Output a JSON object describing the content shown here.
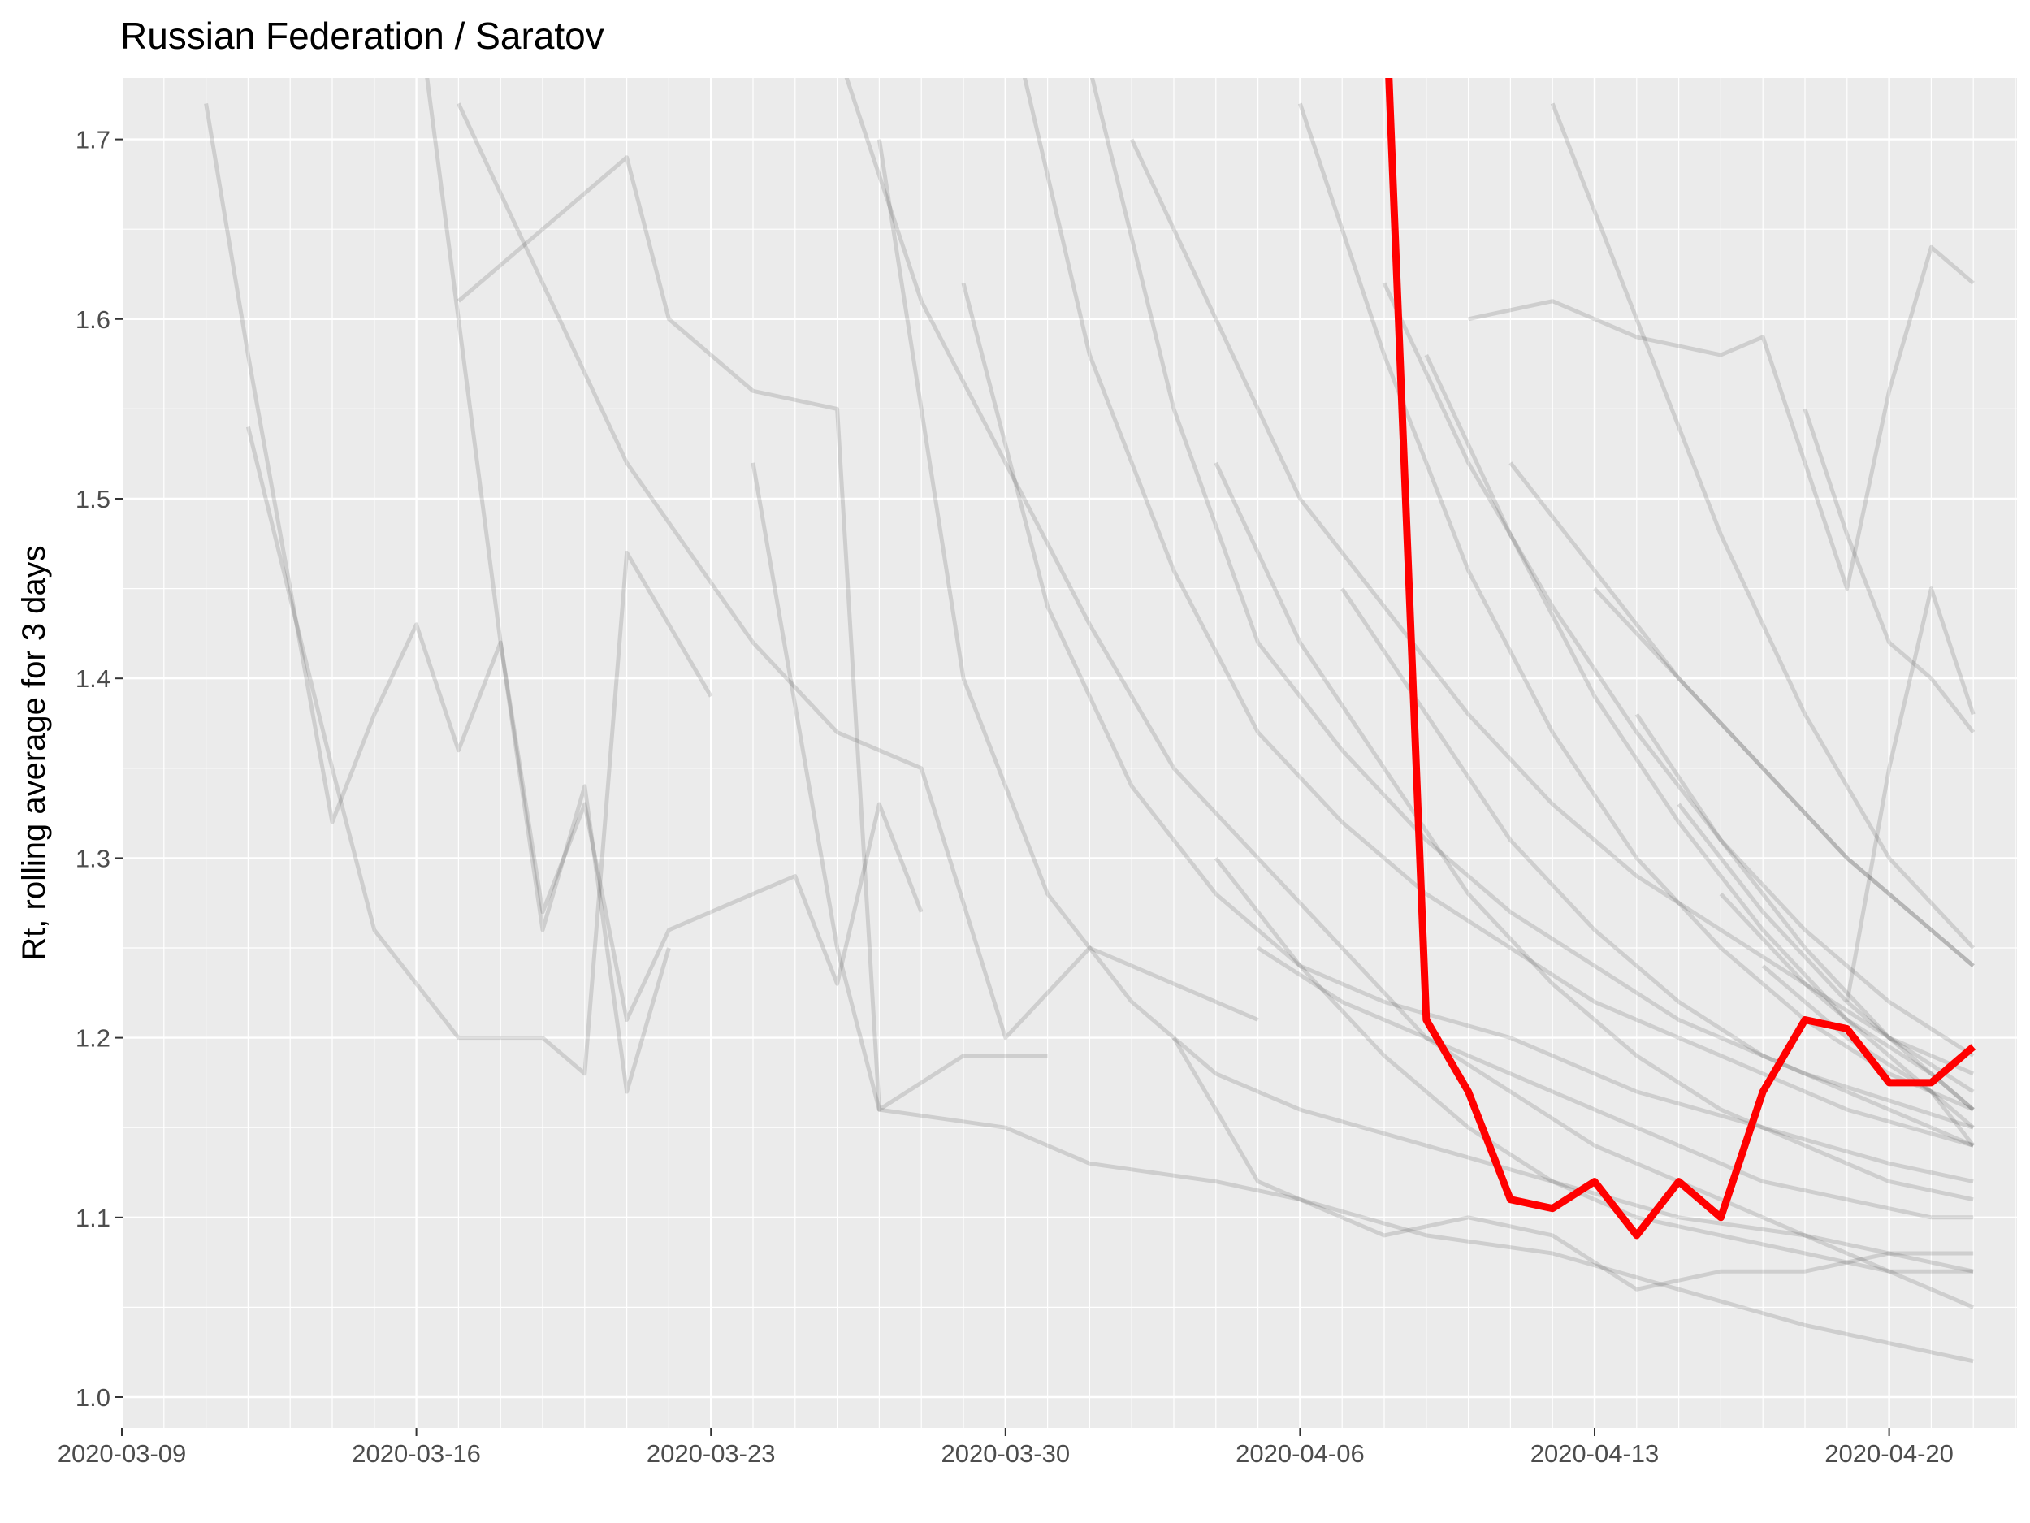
{
  "chart_data": {
    "type": "line",
    "title": "Russian Federation / Saratov",
    "xlabel": "",
    "ylabel": "Rt, rolling average for 3 days",
    "x_range": [
      "2020-03-09",
      "2020-04-23"
    ],
    "ylim": [
      0.96,
      1.735
    ],
    "x_ticks": [
      "2020-03-09",
      "2020-03-16",
      "2020-03-23",
      "2020-03-30",
      "2020-04-06",
      "2020-04-13",
      "2020-04-20"
    ],
    "y_ticks": [
      "1.0",
      "1.1",
      "1.2",
      "1.3",
      "1.4",
      "1.5",
      "1.6",
      "1.7"
    ],
    "grid": true,
    "legend": "none",
    "highlight_color": "#ff0000",
    "background_series_color": "#000000",
    "panel_color": "#ebebeb",
    "highlight": {
      "region": "Saratov",
      "points": [
        [
          "2020-04-08",
          1.8
        ],
        [
          "2020-04-09",
          1.21
        ],
        [
          "2020-04-10",
          1.17
        ],
        [
          "2020-04-11",
          1.11
        ],
        [
          "2020-04-12",
          1.105
        ],
        [
          "2020-04-13",
          1.12
        ],
        [
          "2020-04-14",
          1.09
        ],
        [
          "2020-04-15",
          1.12
        ],
        [
          "2020-04-16",
          1.1
        ],
        [
          "2020-04-17",
          1.17
        ],
        [
          "2020-04-18",
          1.21
        ],
        [
          "2020-04-19",
          1.205
        ],
        [
          "2020-04-20",
          1.175
        ],
        [
          "2020-04-21",
          1.175
        ],
        [
          "2020-04-22",
          1.195
        ]
      ]
    },
    "background_series": [
      [
        [
          "2020-03-11",
          1.72
        ],
        [
          "2020-03-12",
          1.58
        ],
        [
          "2020-03-13",
          1.45
        ],
        [
          "2020-03-14",
          1.32
        ],
        [
          "2020-03-15",
          1.38
        ],
        [
          "2020-03-16",
          1.43
        ],
        [
          "2020-03-17",
          1.36
        ],
        [
          "2020-03-18",
          1.42
        ],
        [
          "2020-03-19",
          1.26
        ],
        [
          "2020-03-20",
          1.34
        ],
        [
          "2020-03-21",
          1.17
        ],
        [
          "2020-03-22",
          1.25
        ]
      ],
      [
        [
          "2020-03-12",
          1.54
        ],
        [
          "2020-03-14",
          1.35
        ],
        [
          "2020-03-15",
          1.26
        ],
        [
          "2020-03-16",
          1.23
        ],
        [
          "2020-03-17",
          1.2
        ],
        [
          "2020-03-19",
          1.2
        ],
        [
          "2020-03-20",
          1.18
        ],
        [
          "2020-03-21",
          1.47
        ],
        [
          "2020-03-23",
          1.39
        ]
      ],
      [
        [
          "2020-03-17",
          1.61
        ],
        [
          "2020-03-21",
          1.69
        ],
        [
          "2020-03-22",
          1.6
        ],
        [
          "2020-03-24",
          1.56
        ],
        [
          "2020-03-26",
          1.55
        ],
        [
          "2020-03-27",
          1.16
        ],
        [
          "2020-03-29",
          1.19
        ],
        [
          "2020-03-31",
          1.19
        ]
      ],
      [
        [
          "2020-03-16",
          1.78
        ],
        [
          "2020-03-17",
          1.6
        ],
        [
          "2020-03-18",
          1.42
        ],
        [
          "2020-03-19",
          1.27
        ],
        [
          "2020-03-20",
          1.33
        ],
        [
          "2020-03-21",
          1.21
        ],
        [
          "2020-03-22",
          1.26
        ],
        [
          "2020-03-24",
          1.28
        ],
        [
          "2020-03-25",
          1.29
        ],
        [
          "2020-03-26",
          1.23
        ],
        [
          "2020-03-27",
          1.33
        ],
        [
          "2020-03-28",
          1.27
        ]
      ],
      [
        [
          "2020-03-17",
          1.72
        ],
        [
          "2020-03-21",
          1.52
        ],
        [
          "2020-03-24",
          1.42
        ],
        [
          "2020-03-26",
          1.37
        ],
        [
          "2020-03-28",
          1.35
        ],
        [
          "2020-03-30",
          1.2
        ],
        [
          "2020-04-01",
          1.25
        ],
        [
          "2020-04-03",
          1.23
        ],
        [
          "2020-04-05",
          1.21
        ]
      ],
      [
        [
          "2020-03-24",
          1.52
        ],
        [
          "2020-03-26",
          1.25
        ],
        [
          "2020-03-27",
          1.16
        ],
        [
          "2020-03-30",
          1.15
        ],
        [
          "2020-04-01",
          1.13
        ],
        [
          "2020-04-04",
          1.12
        ],
        [
          "2020-04-06",
          1.11
        ],
        [
          "2020-04-09",
          1.09
        ],
        [
          "2020-04-12",
          1.08
        ],
        [
          "2020-04-15",
          1.06
        ],
        [
          "2020-04-18",
          1.04
        ],
        [
          "2020-04-22",
          1.02
        ]
      ],
      [
        [
          "2020-03-26",
          1.75
        ],
        [
          "2020-03-28",
          1.61
        ],
        [
          "2020-03-30",
          1.52
        ],
        [
          "2020-04-01",
          1.43
        ],
        [
          "2020-04-03",
          1.35
        ],
        [
          "2020-04-05",
          1.3
        ],
        [
          "2020-04-07",
          1.25
        ],
        [
          "2020-04-09",
          1.2
        ],
        [
          "2020-04-11",
          1.17
        ],
        [
          "2020-04-13",
          1.14
        ],
        [
          "2020-04-16",
          1.11
        ],
        [
          "2020-04-19",
          1.08
        ],
        [
          "2020-04-22",
          1.05
        ]
      ],
      [
        [
          "2020-03-27",
          1.7
        ],
        [
          "2020-03-29",
          1.4
        ],
        [
          "2020-03-31",
          1.28
        ],
        [
          "2020-04-02",
          1.22
        ],
        [
          "2020-04-04",
          1.18
        ],
        [
          "2020-04-06",
          1.16
        ],
        [
          "2020-04-09",
          1.14
        ],
        [
          "2020-04-12",
          1.12
        ],
        [
          "2020-04-15",
          1.1
        ],
        [
          "2020-04-18",
          1.09
        ],
        [
          "2020-04-22",
          1.07
        ]
      ],
      [
        [
          "2020-03-29",
          1.62
        ],
        [
          "2020-03-31",
          1.44
        ],
        [
          "2020-04-02",
          1.34
        ],
        [
          "2020-04-04",
          1.28
        ],
        [
          "2020-04-06",
          1.24
        ],
        [
          "2020-04-08",
          1.22
        ],
        [
          "2020-04-11",
          1.2
        ],
        [
          "2020-04-14",
          1.17
        ],
        [
          "2020-04-17",
          1.15
        ],
        [
          "2020-04-20",
          1.13
        ],
        [
          "2020-04-22",
          1.12
        ]
      ],
      [
        [
          "2020-03-30",
          1.78
        ],
        [
          "2020-04-01",
          1.58
        ],
        [
          "2020-04-03",
          1.46
        ],
        [
          "2020-04-05",
          1.37
        ],
        [
          "2020-04-07",
          1.32
        ],
        [
          "2020-04-09",
          1.28
        ],
        [
          "2020-04-11",
          1.25
        ],
        [
          "2020-04-13",
          1.22
        ],
        [
          "2020-04-16",
          1.19
        ],
        [
          "2020-04-19",
          1.16
        ],
        [
          "2020-04-22",
          1.14
        ]
      ],
      [
        [
          "2020-04-01",
          1.74
        ],
        [
          "2020-04-03",
          1.55
        ],
        [
          "2020-04-05",
          1.42
        ],
        [
          "2020-04-07",
          1.36
        ],
        [
          "2020-04-09",
          1.31
        ],
        [
          "2020-04-11",
          1.27
        ],
        [
          "2020-04-13",
          1.24
        ],
        [
          "2020-04-15",
          1.21
        ],
        [
          "2020-04-18",
          1.18
        ],
        [
          "2020-04-22",
          1.15
        ]
      ],
      [
        [
          "2020-04-02",
          1.7
        ],
        [
          "2020-04-04",
          1.6
        ],
        [
          "2020-04-06",
          1.5
        ],
        [
          "2020-04-08",
          1.44
        ],
        [
          "2020-04-10",
          1.38
        ],
        [
          "2020-04-12",
          1.33
        ],
        [
          "2020-04-14",
          1.29
        ],
        [
          "2020-04-16",
          1.26
        ],
        [
          "2020-04-18",
          1.23
        ],
        [
          "2020-04-20",
          1.2
        ],
        [
          "2020-04-22",
          1.18
        ]
      ],
      [
        [
          "2020-04-03",
          1.2
        ],
        [
          "2020-04-05",
          1.12
        ],
        [
          "2020-04-06",
          1.11
        ],
        [
          "2020-04-08",
          1.09
        ],
        [
          "2020-04-10",
          1.1
        ],
        [
          "2020-04-12",
          1.09
        ],
        [
          "2020-04-14",
          1.06
        ],
        [
          "2020-04-16",
          1.07
        ],
        [
          "2020-04-18",
          1.07
        ],
        [
          "2020-04-20",
          1.08
        ],
        [
          "2020-04-22",
          1.08
        ]
      ],
      [
        [
          "2020-04-04",
          1.52
        ],
        [
          "2020-04-06",
          1.42
        ],
        [
          "2020-04-08",
          1.35
        ],
        [
          "2020-04-10",
          1.28
        ],
        [
          "2020-04-12",
          1.23
        ],
        [
          "2020-04-14",
          1.19
        ],
        [
          "2020-04-16",
          1.16
        ],
        [
          "2020-04-18",
          1.14
        ],
        [
          "2020-04-20",
          1.12
        ],
        [
          "2020-04-22",
          1.11
        ]
      ],
      [
        [
          "2020-04-06",
          1.72
        ],
        [
          "2020-04-08",
          1.58
        ],
        [
          "2020-04-10",
          1.46
        ],
        [
          "2020-04-12",
          1.37
        ],
        [
          "2020-04-14",
          1.3
        ],
        [
          "2020-04-16",
          1.25
        ],
        [
          "2020-04-18",
          1.21
        ],
        [
          "2020-04-20",
          1.18
        ],
        [
          "2020-04-22",
          1.16
        ]
      ],
      [
        [
          "2020-04-07",
          1.45
        ],
        [
          "2020-04-09",
          1.38
        ],
        [
          "2020-04-11",
          1.31
        ],
        [
          "2020-04-13",
          1.26
        ],
        [
          "2020-04-15",
          1.22
        ],
        [
          "2020-04-17",
          1.19
        ],
        [
          "2020-04-19",
          1.17
        ],
        [
          "2020-04-21",
          1.15
        ],
        [
          "2020-04-22",
          1.14
        ]
      ],
      [
        [
          "2020-04-08",
          1.62
        ],
        [
          "2020-04-10",
          1.52
        ],
        [
          "2020-04-12",
          1.44
        ],
        [
          "2020-04-14",
          1.37
        ],
        [
          "2020-04-16",
          1.31
        ],
        [
          "2020-04-18",
          1.26
        ],
        [
          "2020-04-20",
          1.22
        ],
        [
          "2020-04-22",
          1.19
        ]
      ],
      [
        [
          "2020-04-09",
          1.58
        ],
        [
          "2020-04-11",
          1.48
        ],
        [
          "2020-04-13",
          1.39
        ],
        [
          "2020-04-15",
          1.32
        ],
        [
          "2020-04-17",
          1.26
        ],
        [
          "2020-04-19",
          1.21
        ],
        [
          "2020-04-21",
          1.18
        ],
        [
          "2020-04-22",
          1.16
        ]
      ],
      [
        [
          "2020-04-10",
          1.6
        ],
        [
          "2020-04-12",
          1.61
        ],
        [
          "2020-04-14",
          1.59
        ],
        [
          "2020-04-16",
          1.58
        ],
        [
          "2020-04-17",
          1.59
        ],
        [
          "2020-04-18",
          1.52
        ],
        [
          "2020-04-19",
          1.45
        ],
        [
          "2020-04-20",
          1.56
        ],
        [
          "2020-04-21",
          1.64
        ],
        [
          "2020-04-22",
          1.62
        ]
      ],
      [
        [
          "2020-04-11",
          1.52
        ],
        [
          "2020-04-13",
          1.46
        ],
        [
          "2020-04-15",
          1.4
        ],
        [
          "2020-04-17",
          1.35
        ],
        [
          "2020-04-19",
          1.3
        ],
        [
          "2020-04-21",
          1.26
        ],
        [
          "2020-04-22",
          1.24
        ]
      ],
      [
        [
          "2020-04-12",
          1.72
        ],
        [
          "2020-04-14",
          1.6
        ],
        [
          "2020-04-16",
          1.48
        ],
        [
          "2020-04-18",
          1.38
        ],
        [
          "2020-04-20",
          1.3
        ],
        [
          "2020-04-22",
          1.25
        ]
      ],
      [
        [
          "2020-04-13",
          1.45
        ],
        [
          "2020-04-15",
          1.4
        ],
        [
          "2020-04-17",
          1.35
        ],
        [
          "2020-04-19",
          1.3
        ],
        [
          "2020-04-21",
          1.26
        ],
        [
          "2020-04-22",
          1.24
        ]
      ],
      [
        [
          "2020-04-14",
          1.38
        ],
        [
          "2020-04-16",
          1.31
        ],
        [
          "2020-04-18",
          1.25
        ],
        [
          "2020-04-20",
          1.2
        ],
        [
          "2020-04-22",
          1.17
        ]
      ],
      [
        [
          "2020-04-15",
          1.33
        ],
        [
          "2020-04-17",
          1.27
        ],
        [
          "2020-04-19",
          1.22
        ],
        [
          "2020-04-21",
          1.18
        ],
        [
          "2020-04-22",
          1.16
        ]
      ],
      [
        [
          "2020-04-16",
          1.28
        ],
        [
          "2020-04-18",
          1.23
        ],
        [
          "2020-04-20",
          1.19
        ],
        [
          "2020-04-22",
          1.15
        ]
      ],
      [
        [
          "2020-04-17",
          1.24
        ],
        [
          "2020-04-19",
          1.2
        ],
        [
          "2020-04-21",
          1.17
        ],
        [
          "2020-04-22",
          1.14
        ]
      ],
      [
        [
          "2020-04-19",
          1.22
        ],
        [
          "2020-04-20",
          1.35
        ],
        [
          "2020-04-21",
          1.45
        ],
        [
          "2020-04-22",
          1.38
        ]
      ],
      [
        [
          "2020-04-18",
          1.55
        ],
        [
          "2020-04-19",
          1.48
        ],
        [
          "2020-04-20",
          1.42
        ],
        [
          "2020-04-21",
          1.4
        ],
        [
          "2020-04-22",
          1.37
        ]
      ],
      [
        [
          "2020-04-05",
          1.25
        ],
        [
          "2020-04-07",
          1.22
        ],
        [
          "2020-04-09",
          1.2
        ],
        [
          "2020-04-11",
          1.18
        ],
        [
          "2020-04-13",
          1.16
        ],
        [
          "2020-04-15",
          1.14
        ],
        [
          "2020-04-17",
          1.12
        ],
        [
          "2020-04-19",
          1.11
        ],
        [
          "2020-04-21",
          1.1
        ],
        [
          "2020-04-22",
          1.1
        ]
      ],
      [
        [
          "2020-04-04",
          1.3
        ],
        [
          "2020-04-06",
          1.24
        ],
        [
          "2020-04-08",
          1.19
        ],
        [
          "2020-04-10",
          1.15
        ],
        [
          "2020-04-12",
          1.12
        ],
        [
          "2020-04-14",
          1.1
        ],
        [
          "2020-04-16",
          1.09
        ],
        [
          "2020-04-18",
          1.08
        ],
        [
          "2020-04-20",
          1.07
        ],
        [
          "2020-04-22",
          1.07
        ]
      ]
    ]
  }
}
